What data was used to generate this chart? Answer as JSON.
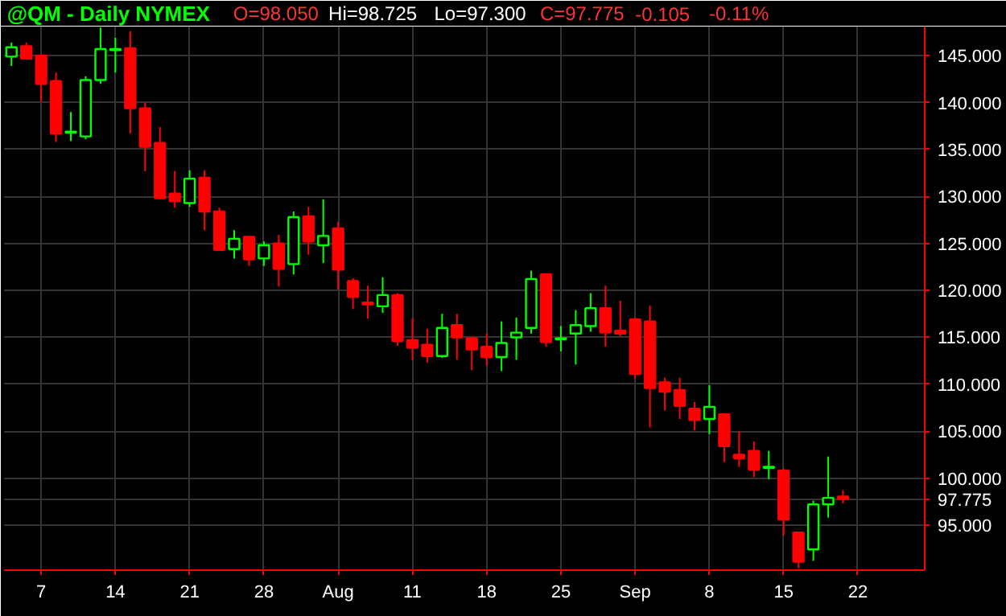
{
  "chart_data": {
    "type": "candlestick",
    "title": "@QM - Daily  NYMEX",
    "annotations": [
      "O=98.050",
      "Hi=98.725",
      "Lo=97.300",
      "C=97.775",
      "-0.105",
      "-0.11%"
    ],
    "categories": [
      null,
      null,
      "7",
      null,
      null,
      null,
      null,
      "14",
      null,
      null,
      null,
      null,
      "21",
      null,
      null,
      null,
      null,
      "28",
      null,
      null,
      null,
      null,
      "Aug",
      null,
      null,
      null,
      null,
      "11",
      null,
      null,
      null,
      null,
      "18",
      null,
      null,
      null,
      null,
      "25",
      null,
      null,
      null,
      null,
      "Sep",
      null,
      null,
      null,
      null,
      "8",
      null,
      null,
      null,
      null,
      "15",
      null,
      null,
      null,
      null,
      "22",
      null,
      null,
      null,
      null
    ],
    "ohlc": [
      [
        144.9,
        146.4,
        143.9,
        145.9
      ],
      [
        146.0,
        146.4,
        144.7,
        144.7
      ],
      [
        145.0,
        145.1,
        140.1,
        142.0
      ],
      [
        142.3,
        143.2,
        135.8,
        136.7
      ],
      [
        136.8,
        139.0,
        135.9,
        136.9
      ],
      [
        136.4,
        142.8,
        136.1,
        142.4
      ],
      [
        142.4,
        148.0,
        142.0,
        145.7
      ],
      [
        145.6,
        146.9,
        143.2,
        145.7
      ],
      [
        145.8,
        147.6,
        136.7,
        139.4
      ],
      [
        139.4,
        140.0,
        132.7,
        135.3
      ],
      [
        135.7,
        137.4,
        129.7,
        129.8
      ],
      [
        130.3,
        132.7,
        128.8,
        129.5
      ],
      [
        129.3,
        132.8,
        128.9,
        131.9
      ],
      [
        132.0,
        132.8,
        126.4,
        128.4
      ],
      [
        128.4,
        128.8,
        124.2,
        124.3
      ],
      [
        124.4,
        126.4,
        123.4,
        125.5
      ],
      [
        125.7,
        125.8,
        122.6,
        123.3
      ],
      [
        123.4,
        125.2,
        122.6,
        124.8
      ],
      [
        125.0,
        125.9,
        120.4,
        122.3
      ],
      [
        122.8,
        128.4,
        121.7,
        127.8
      ],
      [
        127.9,
        128.9,
        123.8,
        125.2
      ],
      [
        124.8,
        129.7,
        122.9,
        125.8
      ],
      [
        126.6,
        127.3,
        120.1,
        122.2
      ],
      [
        121.0,
        121.3,
        118.0,
        119.3
      ],
      [
        118.7,
        120.5,
        117.0,
        118.5
      ],
      [
        118.3,
        121.4,
        117.6,
        119.5
      ],
      [
        119.5,
        119.7,
        114.1,
        114.6
      ],
      [
        114.7,
        117.0,
        112.6,
        113.9
      ],
      [
        114.2,
        115.9,
        112.3,
        113.0
      ],
      [
        113.0,
        117.5,
        112.8,
        116.0
      ],
      [
        116.3,
        117.5,
        112.6,
        115.0
      ],
      [
        114.9,
        115.1,
        111.5,
        113.7
      ],
      [
        114.0,
        115.4,
        112.0,
        112.9
      ],
      [
        112.9,
        116.7,
        111.4,
        114.4
      ],
      [
        115.0,
        117.1,
        112.6,
        115.5
      ],
      [
        116.0,
        122.1,
        115.4,
        121.2
      ],
      [
        121.7,
        121.8,
        114.0,
        114.5
      ],
      [
        114.8,
        116.2,
        113.5,
        114.9
      ],
      [
        115.4,
        117.9,
        112.1,
        116.3
      ],
      [
        116.2,
        119.7,
        115.6,
        118.1
      ],
      [
        118.1,
        120.5,
        114.0,
        115.5
      ],
      [
        115.7,
        118.9,
        115.1,
        115.4
      ],
      [
        116.9,
        117.1,
        110.6,
        111.1
      ],
      [
        116.7,
        118.4,
        105.4,
        109.6
      ],
      [
        110.2,
        110.7,
        107.2,
        109.2
      ],
      [
        109.4,
        110.7,
        106.3,
        107.7
      ],
      [
        107.4,
        108.1,
        105.1,
        106.2
      ],
      [
        106.3,
        109.9,
        104.7,
        107.6
      ],
      [
        106.8,
        106.8,
        101.7,
        103.4
      ],
      [
        102.5,
        105.0,
        101.2,
        102.1
      ],
      [
        102.9,
        103.9,
        100.1,
        100.9
      ],
      [
        101.1,
        102.9,
        99.9,
        101.2
      ],
      [
        100.8,
        101.0,
        93.9,
        95.6
      ],
      [
        94.2,
        94.2,
        90.4,
        91.1
      ],
      [
        92.4,
        97.6,
        91.2,
        97.2
      ],
      [
        97.2,
        102.3,
        95.8,
        97.9
      ],
      [
        98.05,
        98.725,
        97.3,
        97.775
      ],
      null,
      null,
      null,
      null,
      null
    ],
    "colors": [
      "#00ff00",
      "#ff0000",
      "#ff0000",
      "#ff0000",
      "#00ff00",
      "#00ff00",
      "#00ff00",
      "#00ff00",
      "#ff0000",
      "#ff0000",
      "#ff0000",
      "#ff0000",
      "#00ff00",
      "#ff0000",
      "#ff0000",
      "#00ff00",
      "#ff0000",
      "#00ff00",
      "#ff0000",
      "#00ff00",
      "#ff0000",
      "#00ff00",
      "#ff0000",
      "#ff0000",
      "#ff0000",
      "#00ff00",
      "#ff0000",
      "#ff0000",
      "#ff0000",
      "#00ff00",
      "#ff0000",
      "#ff0000",
      "#ff0000",
      "#00ff00",
      "#00ff00",
      "#00ff00",
      "#ff0000",
      "#00ff00",
      "#00ff00",
      "#00ff00",
      "#ff0000",
      "#ff0000",
      "#ff0000",
      "#ff0000",
      "#ff0000",
      "#ff0000",
      "#ff0000",
      "#00ff00",
      "#ff0000",
      "#ff0000",
      "#ff0000",
      "#00ff00",
      "#ff0000",
      "#ff0000",
      "#00ff00",
      "#00ff00",
      "#ff0000",
      null,
      null,
      null,
      null,
      null
    ],
    "ylim": [
      90.2,
      148.1
    ],
    "yticks": [
      {
        "value": 95,
        "label": "95.000"
      },
      {
        "value": 97.775,
        "label": "97.775"
      },
      {
        "value": 100,
        "label": "100.000"
      },
      {
        "value": 105,
        "label": "105.000"
      },
      {
        "value": 110,
        "label": "110.000"
      },
      {
        "value": 115,
        "label": "115.000"
      },
      {
        "value": 120,
        "label": "120.000"
      },
      {
        "value": 125,
        "label": "125.000"
      },
      {
        "value": 130,
        "label": "130.000"
      },
      {
        "value": 135,
        "label": "135.000"
      },
      {
        "value": 140,
        "label": "140.000"
      },
      {
        "value": 145,
        "label": "145.000"
      }
    ],
    "grid": true
  }
}
